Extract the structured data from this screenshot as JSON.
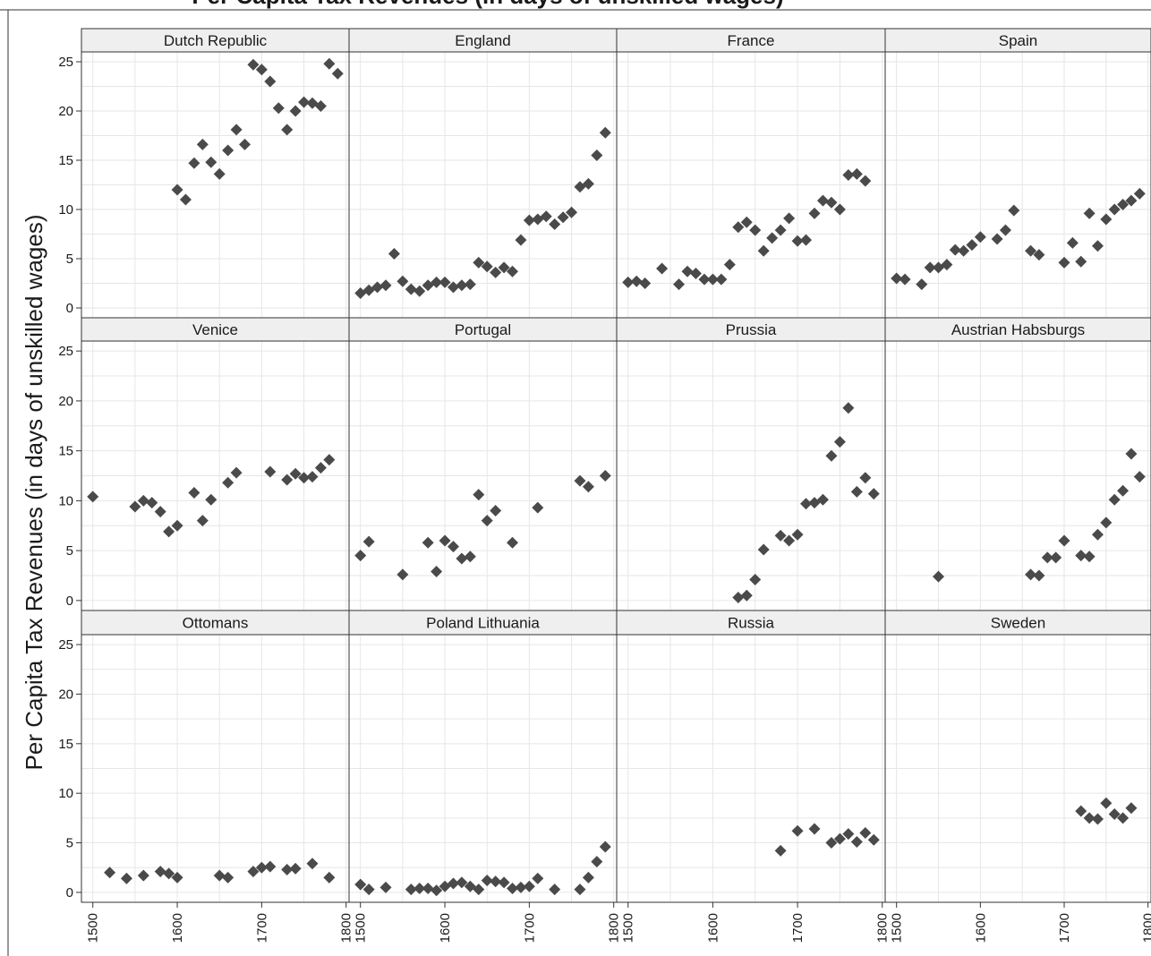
{
  "title": "Per Capita Tax Revenues (in days of unskilled wages)",
  "colors": {
    "strip_bg": "#efefef",
    "grid": "#e6e6e6",
    "marker": "#4a4a4a",
    "axis": "#333333",
    "text": "#1a1a1a"
  },
  "chart_data": {
    "type": "scatter",
    "title": "",
    "ylabel": "Per Capita Tax Revenues (in days of unskilled wages)",
    "xlabel": "",
    "xlim": [
      1495,
      1795
    ],
    "ylim": [
      -1,
      26
    ],
    "xticks": [
      1500,
      1600,
      1700,
      1800
    ],
    "yticks": [
      0,
      5,
      10,
      15,
      20,
      25
    ],
    "marker": "diamond",
    "grid": true,
    "panels": [
      {
        "name": "Dutch Republic",
        "x": [
          1600,
          1610,
          1620,
          1630,
          1640,
          1650,
          1660,
          1670,
          1680,
          1690,
          1700,
          1710,
          1720,
          1730,
          1740,
          1750,
          1760,
          1770,
          1780,
          1790
        ],
        "y": [
          12.0,
          11.0,
          14.7,
          16.6,
          14.8,
          13.6,
          16.0,
          18.1,
          16.6,
          24.7,
          24.2,
          23.0,
          20.3,
          18.1,
          20.0,
          20.9,
          20.8,
          20.5,
          24.8,
          23.8
        ]
      },
      {
        "name": "England",
        "x": [
          1500,
          1510,
          1520,
          1530,
          1540,
          1550,
          1560,
          1570,
          1580,
          1590,
          1600,
          1610,
          1620,
          1630,
          1640,
          1650,
          1660,
          1670,
          1680,
          1690,
          1700,
          1710,
          1720,
          1730,
          1740,
          1750,
          1760,
          1770,
          1780,
          1790
        ],
        "y": [
          1.5,
          1.8,
          2.1,
          2.3,
          5.5,
          2.7,
          1.9,
          1.7,
          2.3,
          2.6,
          2.6,
          2.1,
          2.3,
          2.4,
          4.6,
          4.2,
          3.6,
          4.1,
          3.7,
          6.9,
          8.9,
          9.0,
          9.3,
          8.5,
          9.2,
          9.7,
          12.3,
          12.6,
          15.5,
          17.8
        ]
      },
      {
        "name": "France",
        "x": [
          1500,
          1510,
          1520,
          1540,
          1560,
          1570,
          1580,
          1590,
          1600,
          1610,
          1620,
          1630,
          1640,
          1650,
          1660,
          1670,
          1680,
          1690,
          1700,
          1710,
          1720,
          1730,
          1740,
          1750,
          1760,
          1770,
          1780
        ],
        "y": [
          2.6,
          2.7,
          2.5,
          4.0,
          2.4,
          3.7,
          3.5,
          2.9,
          2.9,
          2.9,
          4.4,
          8.2,
          8.7,
          7.9,
          5.8,
          7.1,
          7.9,
          9.1,
          6.8,
          6.9,
          9.6,
          10.9,
          10.7,
          10.0,
          13.5,
          13.6,
          12.9
        ]
      },
      {
        "name": "Spain",
        "x": [
          1500,
          1510,
          1530,
          1540,
          1550,
          1560,
          1570,
          1580,
          1590,
          1600,
          1620,
          1630,
          1640,
          1660,
          1670,
          1700,
          1710,
          1720,
          1730,
          1740,
          1750,
          1760,
          1770,
          1780,
          1790
        ],
        "y": [
          3.0,
          2.9,
          2.4,
          4.1,
          4.1,
          4.4,
          5.9,
          5.8,
          6.4,
          7.2,
          7.0,
          7.9,
          9.9,
          5.8,
          5.4,
          4.6,
          6.6,
          4.7,
          9.6,
          6.3,
          9.0,
          10.0,
          10.5,
          10.9,
          11.6
        ]
      },
      {
        "name": "Venice",
        "x": [
          1500,
          1550,
          1560,
          1570,
          1580,
          1590,
          1600,
          1620,
          1630,
          1640,
          1660,
          1670,
          1710,
          1730,
          1740,
          1750,
          1760,
          1770,
          1780
        ],
        "y": [
          10.4,
          9.4,
          10.0,
          9.8,
          8.9,
          6.9,
          7.5,
          10.8,
          8.0,
          10.1,
          11.8,
          12.8,
          12.9,
          12.1,
          12.7,
          12.3,
          12.4,
          13.3,
          14.1
        ]
      },
      {
        "name": "Portugal",
        "x": [
          1500,
          1510,
          1550,
          1580,
          1590,
          1600,
          1610,
          1620,
          1630,
          1640,
          1650,
          1660,
          1680,
          1710,
          1760,
          1770,
          1790
        ],
        "y": [
          4.5,
          5.9,
          2.6,
          5.8,
          2.9,
          6.0,
          5.4,
          4.2,
          4.4,
          10.6,
          8.0,
          9.0,
          5.8,
          9.3,
          12.0,
          11.4,
          12.5
        ]
      },
      {
        "name": "Prussia",
        "x": [
          1630,
          1640,
          1650,
          1660,
          1680,
          1690,
          1700,
          1710,
          1720,
          1730,
          1740,
          1750,
          1760,
          1770,
          1780,
          1790
        ],
        "y": [
          0.3,
          0.5,
          2.1,
          5.1,
          6.5,
          6.0,
          6.6,
          9.7,
          9.8,
          10.1,
          14.5,
          15.9,
          19.3,
          10.9,
          12.3,
          10.7
        ]
      },
      {
        "name": "Austrian Habsburgs",
        "x": [
          1550,
          1660,
          1670,
          1680,
          1690,
          1700,
          1720,
          1730,
          1740,
          1750,
          1760,
          1770,
          1780,
          1790
        ],
        "y": [
          2.4,
          2.6,
          2.5,
          4.3,
          4.3,
          6.0,
          4.5,
          4.4,
          6.6,
          7.8,
          10.1,
          11.0,
          14.7,
          12.4
        ]
      },
      {
        "name": "Ottomans",
        "x": [
          1520,
          1540,
          1560,
          1580,
          1590,
          1600,
          1650,
          1660,
          1690,
          1700,
          1710,
          1730,
          1740,
          1760,
          1780
        ],
        "y": [
          2.0,
          1.4,
          1.7,
          2.1,
          1.9,
          1.5,
          1.7,
          1.5,
          2.1,
          2.5,
          2.6,
          2.3,
          2.4,
          2.9,
          1.5
        ]
      },
      {
        "name": "Poland Lithuania",
        "x": [
          1500,
          1510,
          1530,
          1560,
          1570,
          1580,
          1590,
          1600,
          1610,
          1620,
          1630,
          1640,
          1650,
          1660,
          1670,
          1680,
          1690,
          1700,
          1710,
          1730,
          1760,
          1770,
          1780,
          1790
        ],
        "y": [
          0.8,
          0.3,
          0.5,
          0.3,
          0.4,
          0.4,
          0.2,
          0.6,
          0.9,
          1.0,
          0.6,
          0.3,
          1.2,
          1.1,
          1.0,
          0.4,
          0.5,
          0.6,
          1.4,
          0.3,
          0.3,
          1.5,
          3.1,
          4.6
        ]
      },
      {
        "name": "Russia",
        "x": [
          1680,
          1700,
          1720,
          1740,
          1750,
          1760,
          1770,
          1780,
          1790
        ],
        "y": [
          4.2,
          6.2,
          6.4,
          5.0,
          5.4,
          5.9,
          5.1,
          6.0,
          5.3
        ]
      },
      {
        "name": "Sweden",
        "x": [
          1720,
          1730,
          1740,
          1750,
          1760,
          1770,
          1780
        ],
        "y": [
          8.2,
          7.5,
          7.4,
          9.0,
          7.9,
          7.5,
          8.5
        ]
      }
    ]
  }
}
